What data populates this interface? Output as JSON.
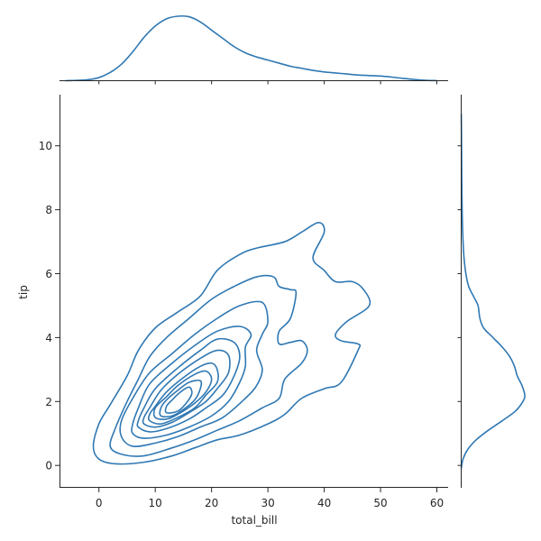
{
  "chart_data": {
    "type": "kde-jointplot",
    "xlabel": "total_bill",
    "ylabel": "tip",
    "xlim": [
      -7,
      62
    ],
    "ylim": [
      -0.7,
      11.6
    ],
    "x_ticks": [
      0,
      10,
      20,
      30,
      40,
      50,
      60
    ],
    "y_ticks": [
      0,
      2,
      4,
      6,
      8,
      10
    ],
    "color": "#2f78b3",
    "grid": false,
    "legend": "none",
    "marginal_x": [
      [
        -6,
        0
      ],
      [
        -2,
        0.001
      ],
      [
        0,
        0.003
      ],
      [
        2,
        0.008
      ],
      [
        4,
        0.016
      ],
      [
        6,
        0.028
      ],
      [
        8,
        0.042
      ],
      [
        10,
        0.053
      ],
      [
        12,
        0.06
      ],
      [
        14,
        0.0625
      ],
      [
        16,
        0.062
      ],
      [
        18,
        0.057
      ],
      [
        20,
        0.049
      ],
      [
        22,
        0.041
      ],
      [
        24,
        0.033
      ],
      [
        26,
        0.027
      ],
      [
        28,
        0.023
      ],
      [
        30,
        0.02
      ],
      [
        32,
        0.017
      ],
      [
        34,
        0.014
      ],
      [
        36,
        0.012
      ],
      [
        38,
        0.01
      ],
      [
        40,
        0.0085
      ],
      [
        42,
        0.0075
      ],
      [
        44,
        0.0065
      ],
      [
        46,
        0.0055
      ],
      [
        48,
        0.005
      ],
      [
        50,
        0.0045
      ],
      [
        52,
        0.0035
      ],
      [
        54,
        0.0022
      ],
      [
        56,
        0.0012
      ],
      [
        58,
        0.0004
      ],
      [
        60,
        0.0001
      ]
    ],
    "marginal_y": [
      [
        -0.1,
        0
      ],
      [
        0.2,
        0.01
      ],
      [
        0.5,
        0.035
      ],
      [
        0.8,
        0.08
      ],
      [
        1.1,
        0.145
      ],
      [
        1.4,
        0.22
      ],
      [
        1.7,
        0.29
      ],
      [
        2.0,
        0.33
      ],
      [
        2.2,
        0.34
      ],
      [
        2.5,
        0.325
      ],
      [
        2.8,
        0.3
      ],
      [
        3.1,
        0.285
      ],
      [
        3.4,
        0.26
      ],
      [
        3.7,
        0.22
      ],
      [
        4.0,
        0.17
      ],
      [
        4.3,
        0.12
      ],
      [
        4.6,
        0.1
      ],
      [
        5.0,
        0.09
      ],
      [
        5.3,
        0.065
      ],
      [
        5.6,
        0.04
      ],
      [
        6.0,
        0.025
      ],
      [
        6.5,
        0.015
      ],
      [
        7.0,
        0.01
      ],
      [
        7.5,
        0.007
      ],
      [
        8.0,
        0.005
      ],
      [
        9.0,
        0.003
      ],
      [
        10.0,
        0.002
      ],
      [
        11.0,
        0.0005
      ]
    ],
    "contours": [
      [
        [
          -1,
          0.6
        ],
        [
          0,
          0.2
        ],
        [
          3,
          0.05
        ],
        [
          8,
          0.1
        ],
        [
          13,
          0.3
        ],
        [
          17,
          0.55
        ],
        [
          21,
          0.8
        ],
        [
          25,
          0.95
        ],
        [
          30,
          1.3
        ],
        [
          33,
          1.6
        ],
        [
          36,
          2.1
        ],
        [
          40,
          2.4
        ],
        [
          43,
          2.6
        ],
        [
          46,
          3.6
        ],
        [
          46,
          3.8
        ],
        [
          43,
          3.9
        ],
        [
          42,
          4.1
        ],
        [
          44,
          4.5
        ],
        [
          48,
          5.0
        ],
        [
          47,
          5.5
        ],
        [
          45,
          5.75
        ],
        [
          42,
          5.75
        ],
        [
          40,
          6.1
        ],
        [
          38,
          6.5
        ],
        [
          40,
          7.3
        ],
        [
          39,
          7.6
        ],
        [
          36,
          7.3
        ],
        [
          33,
          7.0
        ],
        [
          28,
          6.8
        ],
        [
          25,
          6.6
        ],
        [
          21,
          6.1
        ],
        [
          18,
          5.3
        ],
        [
          14,
          4.8
        ],
        [
          10,
          4.3
        ],
        [
          7,
          3.6
        ],
        [
          5,
          2.8
        ],
        [
          2,
          1.9
        ],
        [
          0,
          1.3
        ],
        [
          -1,
          0.6
        ]
      ],
      [
        [
          2,
          0.6
        ],
        [
          4,
          0.35
        ],
        [
          8,
          0.3
        ],
        [
          13,
          0.55
        ],
        [
          17,
          0.8
        ],
        [
          21,
          1.1
        ],
        [
          25,
          1.4
        ],
        [
          29,
          1.8
        ],
        [
          32,
          2.1
        ],
        [
          33,
          2.7
        ],
        [
          36,
          3.2
        ],
        [
          37,
          3.6
        ],
        [
          36,
          3.9
        ],
        [
          34,
          3.85
        ],
        [
          32,
          3.8
        ],
        [
          32,
          4.2
        ],
        [
          34,
          4.6
        ],
        [
          35,
          5.4
        ],
        [
          34,
          5.5
        ],
        [
          32,
          5.6
        ],
        [
          31,
          5.9
        ],
        [
          28,
          5.9
        ],
        [
          24,
          5.6
        ],
        [
          20,
          5.2
        ],
        [
          16,
          4.6
        ],
        [
          12,
          4.0
        ],
        [
          9,
          3.4
        ],
        [
          7,
          2.7
        ],
        [
          5,
          2.0
        ],
        [
          3,
          1.2
        ],
        [
          2,
          0.6
        ]
      ],
      [
        [
          4,
          0.9
        ],
        [
          6,
          0.6
        ],
        [
          10,
          0.7
        ],
        [
          14,
          0.9
        ],
        [
          18,
          1.2
        ],
        [
          22,
          1.5
        ],
        [
          26,
          2.1
        ],
        [
          28,
          2.5
        ],
        [
          29,
          3.0
        ],
        [
          28,
          3.6
        ],
        [
          29,
          4.1
        ],
        [
          30,
          4.5
        ],
        [
          29,
          5.1
        ],
        [
          25,
          5.0
        ],
        [
          21,
          4.6
        ],
        [
          17,
          4.1
        ],
        [
          13,
          3.5
        ],
        [
          9,
          2.9
        ],
        [
          6,
          2.1
        ],
        [
          4,
          1.4
        ],
        [
          4,
          0.9
        ]
      ],
      [
        [
          6,
          1.0
        ],
        [
          8,
          0.85
        ],
        [
          12,
          0.95
        ],
        [
          16,
          1.2
        ],
        [
          20,
          1.55
        ],
        [
          23,
          2.0
        ],
        [
          25,
          2.6
        ],
        [
          26,
          3.1
        ],
        [
          26,
          3.7
        ],
        [
          27,
          4.1
        ],
        [
          25,
          4.35
        ],
        [
          21,
          4.2
        ],
        [
          17,
          3.75
        ],
        [
          13,
          3.2
        ],
        [
          9,
          2.55
        ],
        [
          7,
          1.8
        ],
        [
          6,
          1.3
        ],
        [
          6,
          1.0
        ]
      ],
      [
        [
          7,
          1.2
        ],
        [
          9,
          1.05
        ],
        [
          12,
          1.15
        ],
        [
          16,
          1.45
        ],
        [
          19,
          1.8
        ],
        [
          22,
          2.2
        ],
        [
          24,
          2.8
        ],
        [
          25,
          3.4
        ],
        [
          24,
          3.85
        ],
        [
          21,
          3.95
        ],
        [
          18,
          3.6
        ],
        [
          14,
          3.05
        ],
        [
          10,
          2.4
        ],
        [
          8,
          1.8
        ],
        [
          7,
          1.4
        ],
        [
          7,
          1.2
        ]
      ],
      [
        [
          8,
          1.3
        ],
        [
          10,
          1.2
        ],
        [
          13,
          1.35
        ],
        [
          16,
          1.65
        ],
        [
          19,
          2.0
        ],
        [
          21,
          2.4
        ],
        [
          23,
          2.9
        ],
        [
          23,
          3.45
        ],
        [
          21,
          3.6
        ],
        [
          18,
          3.35
        ],
        [
          14,
          2.85
        ],
        [
          11,
          2.35
        ],
        [
          9,
          1.8
        ],
        [
          8,
          1.5
        ],
        [
          8,
          1.3
        ]
      ],
      [
        [
          9,
          1.4
        ],
        [
          11,
          1.3
        ],
        [
          14,
          1.5
        ],
        [
          17,
          1.8
        ],
        [
          19,
          2.2
        ],
        [
          21,
          2.6
        ],
        [
          21,
          3.0
        ],
        [
          20,
          3.2
        ],
        [
          18,
          3.1
        ],
        [
          15,
          2.75
        ],
        [
          12,
          2.3
        ],
        [
          10,
          1.85
        ],
        [
          9,
          1.6
        ],
        [
          9,
          1.4
        ]
      ],
      [
        [
          10,
          1.5
        ],
        [
          12,
          1.45
        ],
        [
          14,
          1.6
        ],
        [
          17,
          1.95
        ],
        [
          19,
          2.3
        ],
        [
          20,
          2.7
        ],
        [
          19,
          2.95
        ],
        [
          17,
          2.85
        ],
        [
          14,
          2.5
        ],
        [
          12,
          2.15
        ],
        [
          10,
          1.8
        ],
        [
          10,
          1.5
        ]
      ],
      [
        [
          11,
          1.55
        ],
        [
          13,
          1.55
        ],
        [
          15,
          1.75
        ],
        [
          17,
          2.05
        ],
        [
          18,
          2.4
        ],
        [
          18,
          2.65
        ],
        [
          16,
          2.6
        ],
        [
          14,
          2.35
        ],
        [
          12,
          2.05
        ],
        [
          11,
          1.8
        ],
        [
          11,
          1.55
        ]
      ],
      [
        [
          12,
          1.65
        ],
        [
          14,
          1.7
        ],
        [
          15.5,
          1.95
        ],
        [
          16.5,
          2.25
        ],
        [
          16,
          2.45
        ],
        [
          14.5,
          2.3
        ],
        [
          13,
          2.05
        ],
        [
          12,
          1.85
        ],
        [
          12,
          1.65
        ]
      ]
    ]
  }
}
